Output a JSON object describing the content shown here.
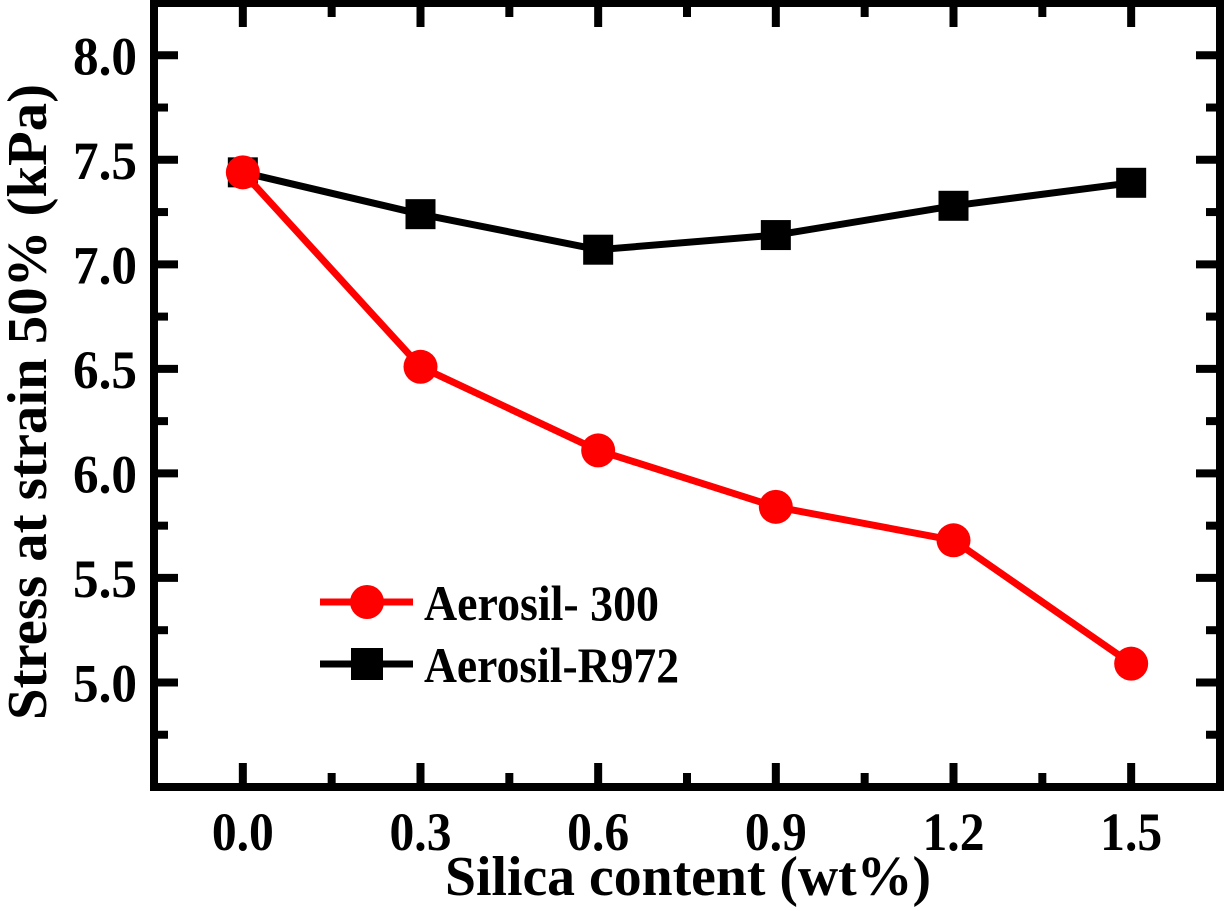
{
  "chart_data": {
    "type": "line",
    "title": "",
    "xlabel": "Silica content (wt%)",
    "ylabel": "Stress at strain 50% (kPa)",
    "x": [
      0.0,
      0.3,
      0.6,
      0.9,
      1.2,
      1.5
    ],
    "xlim": [
      -0.15,
      1.65
    ],
    "ylim": [
      4.5,
      8.25
    ],
    "x_ticks": [
      0.0,
      0.3,
      0.6,
      0.9,
      1.2,
      1.5
    ],
    "x_tick_labels": [
      "0.0",
      "0.3",
      "0.6",
      "0.9",
      "1.2",
      "1.5"
    ],
    "x_minor_ticks": [
      0.15,
      0.45,
      0.75,
      1.05,
      1.35
    ],
    "y_ticks": [
      5.0,
      5.5,
      6.0,
      6.5,
      7.0,
      7.5,
      8.0
    ],
    "y_tick_labels": [
      "5.0",
      "5.5",
      "6.0",
      "6.5",
      "7.0",
      "7.5",
      "8.0"
    ],
    "y_minor_ticks": [
      4.75,
      5.25,
      5.75,
      6.25,
      6.75,
      7.25,
      7.75
    ],
    "grid": false,
    "legend_position": "lower-left",
    "series": [
      {
        "name": "Aerosil-R972",
        "label": "Aerosil-R972",
        "color": "#000000",
        "marker": "square",
        "values": [
          7.44,
          7.24,
          7.07,
          7.14,
          7.28,
          7.39
        ]
      },
      {
        "name": "Aerosil- 300",
        "label": "Aerosil- 300",
        "color": "#ff0000",
        "marker": "circle",
        "values": [
          7.44,
          6.51,
          6.11,
          5.84,
          5.68,
          5.09
        ]
      }
    ],
    "legend_order": [
      "Aerosil- 300",
      "Aerosil-R972"
    ]
  }
}
